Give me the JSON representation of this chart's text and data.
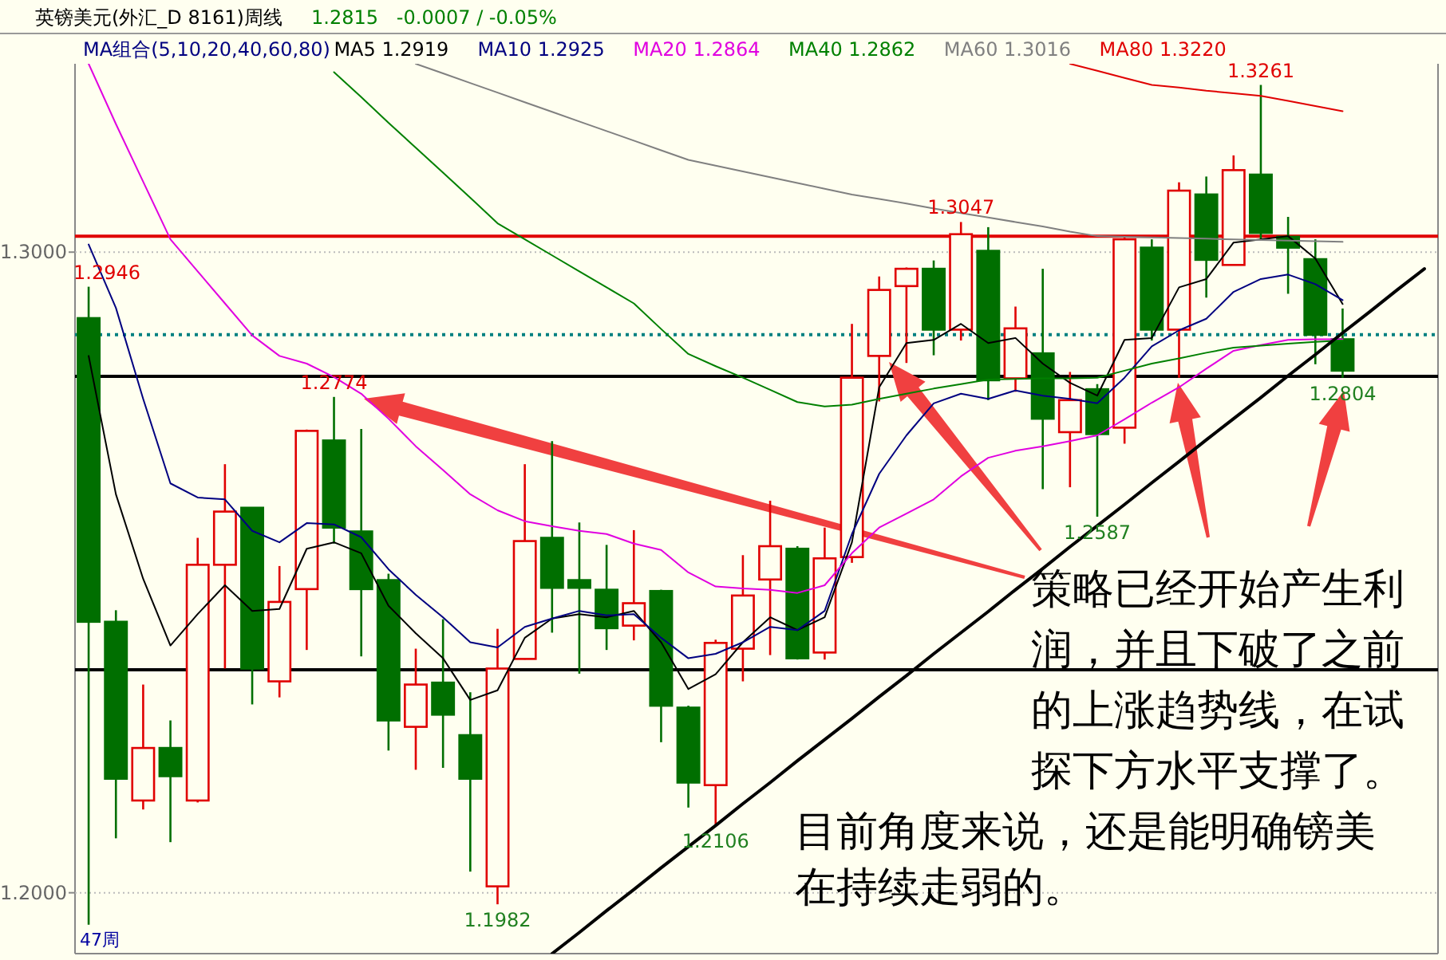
{
  "chart_data": {
    "type": "candlestick",
    "title": "英镑美元(外汇_D 8161)周线",
    "subtitle": "1.2815   -0.0007 / -0.05%",
    "legend_title": "MA组合(5,10,20,40,60,80)",
    "legend": "top left",
    "grid": "y",
    "tick_labels": "y",
    "categories": [
      null,
      null,
      null,
      null,
      null,
      null,
      null,
      null,
      null,
      null,
      null,
      null,
      null,
      null,
      null,
      null,
      null,
      null,
      null,
      null,
      null,
      null,
      null,
      null,
      null,
      null,
      null,
      null,
      null,
      null,
      null,
      null,
      null,
      null,
      null,
      null,
      null,
      null,
      null,
      null,
      null,
      null,
      null,
      null,
      null,
      null,
      null,
      null,
      null,
      null
    ],
    "ylim": [
      1.1905,
      1.3294
    ],
    "yticks": [
      {
        "value": 1.2,
        "label": "1.2000"
      },
      {
        "value": 1.3,
        "label": "1.3000"
      }
    ],
    "ohlc": [
      [
        1.2897,
        1.2946,
        1.195,
        1.2423
      ],
      [
        1.2423,
        1.2441,
        1.2085,
        1.2178
      ],
      [
        1.2144,
        1.2325,
        1.213,
        1.2226
      ],
      [
        1.2226,
        1.2269,
        1.2079,
        1.2182
      ],
      [
        1.2144,
        1.2554,
        1.2141,
        1.2512
      ],
      [
        1.2512,
        1.2669,
        1.235,
        1.2595
      ],
      [
        1.2601,
        1.2601,
        1.2294,
        1.235
      ],
      [
        1.233,
        1.251,
        1.2305,
        1.2454
      ],
      [
        1.2474,
        1.2723,
        1.2379,
        1.2721
      ],
      [
        1.2706,
        1.2774,
        1.2545,
        1.257
      ],
      [
        1.2564,
        1.2724,
        1.2369,
        1.2474
      ],
      [
        1.2488,
        1.2498,
        1.2222,
        1.2269
      ],
      [
        1.2259,
        1.2381,
        1.2192,
        1.2325
      ],
      [
        1.2328,
        1.2427,
        1.2195,
        1.2278
      ],
      [
        1.2246,
        1.2313,
        1.2033,
        1.2178
      ],
      [
        1.201,
        1.2412,
        1.1982,
        1.235
      ],
      [
        1.2365,
        1.2669,
        1.2364,
        1.2549
      ],
      [
        1.2554,
        1.2705,
        1.2406,
        1.2476
      ],
      [
        1.2488,
        1.2578,
        1.2342,
        1.2476
      ],
      [
        1.2473,
        1.2543,
        1.2379,
        1.2413
      ],
      [
        1.2417,
        1.2566,
        1.2394,
        1.2452
      ],
      [
        1.2471,
        1.2473,
        1.2235,
        1.2292
      ],
      [
        1.2289,
        1.2292,
        1.2133,
        1.2172
      ],
      [
        1.2168,
        1.2395,
        1.2106,
        1.239
      ],
      [
        1.2381,
        1.2527,
        1.233,
        1.2464
      ],
      [
        1.2489,
        1.2612,
        1.2371,
        1.2541
      ],
      [
        1.2537,
        1.2541,
        1.2364,
        1.2366
      ],
      [
        1.2375,
        1.257,
        1.2364,
        1.2522
      ],
      [
        1.2524,
        1.2888,
        1.2515,
        1.2804
      ],
      [
        1.2838,
        1.2962,
        1.2767,
        1.2941
      ],
      [
        1.2947,
        1.2976,
        1.2827,
        1.2974
      ],
      [
        1.2974,
        1.2987,
        1.2839,
        1.2879
      ],
      [
        1.2879,
        1.3047,
        1.2862,
        1.3028
      ],
      [
        1.3002,
        1.3039,
        1.2769,
        1.28
      ],
      [
        1.2803,
        1.2915,
        1.2782,
        1.2881
      ],
      [
        1.2842,
        1.2974,
        1.263,
        1.274
      ],
      [
        1.2719,
        1.2813,
        1.2633,
        1.2769
      ],
      [
        1.2786,
        1.2794,
        1.2587,
        1.2716
      ],
      [
        1.2726,
        1.3025,
        1.2701,
        1.302
      ],
      [
        1.3007,
        1.302,
        1.2862,
        1.2879
      ],
      [
        1.2879,
        1.3109,
        1.2804,
        1.3096
      ],
      [
        1.309,
        1.3118,
        1.2929,
        1.2988
      ],
      [
        1.298,
        1.3151,
        1.298,
        1.3128
      ],
      [
        1.3121,
        1.3261,
        1.302,
        1.303
      ],
      [
        1.3024,
        1.3055,
        1.2935,
        1.3007
      ],
      [
        1.2989,
        1.302,
        1.2825,
        1.2871
      ],
      [
        1.2864,
        1.2912,
        1.2804,
        1.2815
      ],
      null,
      null,
      null
    ],
    "series": [
      {
        "type": "line",
        "name": "MA5 1.2919",
        "color": "#000000",
        "values": [
          1.2838,
          1.2622,
          1.249,
          1.2386,
          1.2435,
          1.248,
          1.244,
          1.2443,
          1.2537,
          1.2547,
          1.253,
          1.2448,
          1.2405,
          1.2366,
          1.2301,
          1.2316,
          1.2398,
          1.2428,
          1.2435,
          1.243,
          1.244,
          1.2391,
          1.2318,
          1.2341,
          1.2391,
          1.243,
          1.241,
          1.243,
          1.2547,
          1.2789,
          1.2858,
          1.2863,
          1.2888,
          1.2858,
          1.2866,
          1.2826,
          1.2796,
          1.2776,
          1.2863,
          1.2866,
          1.2945,
          1.2958,
          1.3015,
          1.302,
          1.3025,
          1.299,
          1.2919,
          null,
          null,
          null
        ]
      },
      {
        "type": "line",
        "name": "MA10 1.2925",
        "color": "#000080",
        "values": [
          1.3012,
          1.2913,
          1.2771,
          1.2639,
          1.2617,
          1.2614,
          1.2565,
          1.2547,
          1.2577,
          1.2575,
          1.2555,
          1.2505,
          1.2465,
          1.243,
          1.2391,
          1.2383,
          1.2415,
          1.2428,
          1.244,
          1.2433,
          1.2435,
          1.2398,
          1.2366,
          1.2373,
          1.2391,
          1.2415,
          1.241,
          1.244,
          1.256,
          1.2654,
          1.2714,
          1.2764,
          1.2779,
          1.2771,
          1.2784,
          1.2776,
          1.2771,
          1.2764,
          1.2804,
          1.2853,
          1.2878,
          1.2896,
          1.2938,
          1.2958,
          1.2965,
          1.295,
          1.2925,
          null,
          null,
          null
        ]
      },
      {
        "type": "line",
        "name": "MA20 1.2864",
        "color": "#e000e0",
        "values": [
          1.3294,
          1.32,
          1.311,
          1.302,
          1.297,
          1.292,
          1.287,
          1.2838,
          1.2826,
          1.2805,
          1.2779,
          1.274,
          1.2697,
          1.266,
          1.2622,
          1.2597,
          1.258,
          1.2572,
          1.2565,
          1.256,
          1.2545,
          1.2535,
          1.25,
          1.2478,
          1.2475,
          1.2473,
          1.2468,
          1.248,
          1.253,
          1.257,
          1.2592,
          1.2614,
          1.265,
          1.2679,
          1.269,
          1.2697,
          1.2705,
          1.2714,
          1.2739,
          1.2765,
          1.2789,
          1.2818,
          1.2846,
          1.2855,
          1.2863,
          1.2864,
          1.2864,
          null,
          null,
          null
        ]
      },
      {
        "type": "line",
        "name": "MA40 1.2862",
        "color": "#008000",
        "values": [
          null,
          null,
          null,
          null,
          null,
          null,
          null,
          null,
          null,
          1.3281,
          1.3242,
          1.3202,
          1.3163,
          1.3124,
          1.3085,
          1.3045,
          1.302,
          1.2995,
          1.297,
          1.2945,
          1.292,
          1.288,
          1.2841,
          1.2822,
          1.2804,
          1.2785,
          1.2766,
          1.2759,
          1.2762,
          1.2771,
          1.2779,
          1.2787,
          1.2794,
          1.2801,
          1.2802,
          1.2803,
          1.2803,
          1.2804,
          1.2815,
          1.2826,
          1.2834,
          1.2843,
          1.2851,
          1.2854,
          1.2857,
          1.286,
          1.2862,
          null,
          null,
          null
        ]
      },
      {
        "type": "line",
        "name": "MA60 1.3016",
        "color": "#808080",
        "values": [
          null,
          null,
          null,
          null,
          null,
          null,
          null,
          null,
          null,
          null,
          null,
          null,
          1.3294,
          1.3279,
          1.3264,
          1.3249,
          1.3234,
          1.3219,
          1.3204,
          1.3189,
          1.3174,
          1.3159,
          1.3144,
          1.3135,
          1.3126,
          1.3117,
          1.3108,
          1.3099,
          1.309,
          1.3083,
          1.3076,
          1.3068,
          1.3061,
          1.3054,
          1.3047,
          1.304,
          1.3032,
          1.3025,
          1.3024,
          1.3023,
          1.3022,
          1.3021,
          1.302,
          1.3019,
          1.3018,
          1.3017,
          1.3016,
          null,
          null,
          null
        ]
      },
      {
        "type": "line",
        "name": "MA80 1.3220",
        "color": "#e00000",
        "values": [
          null,
          null,
          null,
          null,
          null,
          null,
          null,
          null,
          null,
          null,
          null,
          null,
          null,
          null,
          null,
          null,
          null,
          null,
          null,
          null,
          null,
          null,
          null,
          null,
          null,
          null,
          null,
          null,
          null,
          null,
          null,
          null,
          null,
          null,
          null,
          null,
          1.3294,
          1.3283,
          1.3272,
          1.3261,
          1.3257,
          1.3252,
          1.3248,
          1.3244,
          1.3236,
          1.3228,
          1.322,
          null,
          null,
          null
        ]
      },
      {
        "type": "line",
        "color": "#000000",
        "values": [
          null,
          null,
          null,
          null,
          null,
          null,
          null,
          null,
          null,
          null,
          null,
          null,
          null,
          null,
          null,
          null,
          null,
          1.1905,
          1.1938,
          1.1972,
          1.2005,
          1.2039,
          1.2072,
          1.2105,
          1.2139,
          1.2172,
          1.2206,
          1.2239,
          1.2272,
          1.2306,
          1.2339,
          1.2373,
          1.2406,
          1.2439,
          1.2473,
          1.2506,
          1.254,
          1.2573,
          1.2606,
          1.264,
          1.2673,
          1.2707,
          1.274,
          1.2773,
          1.2807,
          1.284,
          1.2874,
          1.2907,
          1.2941,
          1.2974
        ]
      }
    ],
    "ref_lines": [
      {
        "axis": "y",
        "value": 1.3025,
        "color": "#e00000",
        "line_style": "solid"
      },
      {
        "axis": "y",
        "value": 1.2871,
        "color": "#008080",
        "line_style": "dotted"
      },
      {
        "axis": "y",
        "value": 1.2806,
        "color": "#000000",
        "line_style": "solid"
      },
      {
        "axis": "y",
        "value": 1.2348,
        "color": "#000000",
        "line_style": "solid"
      }
    ],
    "annotations": [
      {
        "text": "1.2946",
        "y": 1.2946
      },
      {
        "text": "1.2774",
        "y": 1.2774
      },
      {
        "text": "1.1982",
        "y": 1.1982
      },
      {
        "text": "1.2106",
        "y": 1.2106
      },
      {
        "text": "1.2587",
        "y": 1.2587
      },
      {
        "text": "1.3047",
        "y": 1.3047
      },
      {
        "text": "1.3261",
        "y": 1.3261
      },
      {
        "text": "1.2804",
        "y": 1.2804
      },
      "47周",
      "策略已经开始产生利润，并且下破了之前的上涨趋势线，在试探下方水平支撑了。",
      "目前角度来说，还是能明确镑美在持续走弱的。"
    ]
  }
}
